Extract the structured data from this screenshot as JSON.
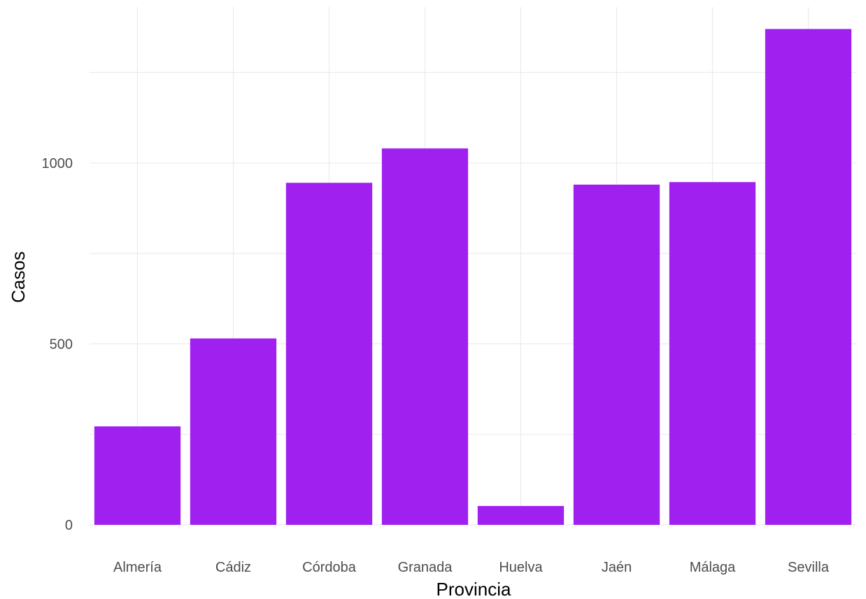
{
  "chart_data": {
    "type": "bar",
    "categories": [
      "Almería",
      "Cádiz",
      "Córdoba",
      "Granada",
      "Huelva",
      "Jaén",
      "Málaga",
      "Sevilla"
    ],
    "values": [
      272,
      515,
      945,
      1040,
      52,
      940,
      947,
      1370
    ],
    "xlabel": "Provincia",
    "ylabel": "Casos",
    "yticks": [
      0,
      500,
      1000
    ],
    "ylim": [
      0,
      1425
    ],
    "bar_color": "#a020f0",
    "grid": true
  }
}
